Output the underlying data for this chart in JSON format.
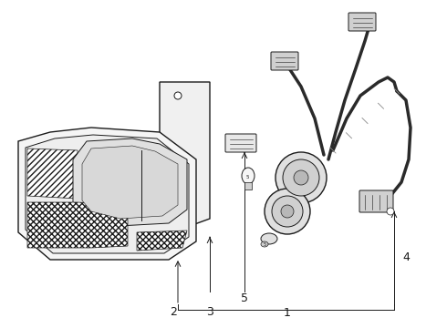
{
  "background_color": "#ffffff",
  "line_color": "#1a1a1a",
  "gray1": "#e8e8e8",
  "gray2": "#d0d0d0",
  "gray3": "#b0b0b0",
  "dark_wire": "#2a2a2a"
}
